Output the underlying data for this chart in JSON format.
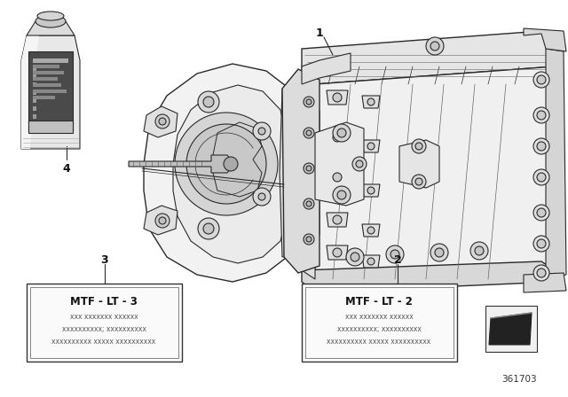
{
  "bg_color": "#ffffff",
  "diagram_id": "361703",
  "label_1": "1",
  "label_2": "2",
  "label_3": "3",
  "label_4": "4",
  "mtf_lt_2_title": "MTF - LT - 2",
  "mtf_lt_3_title": "MTF - LT - 3",
  "mtf_line1": "xxx xxxxxxx xxxxxx",
  "mtf_line2": "xxxxxxxxxx; xxxxxxxxxx",
  "mtf_line3": "xxxxxxxxxx xxxxx xxxxxxxxxx",
  "lc": "#2a2a2a",
  "lc_light": "#666666",
  "fill_white": "#ffffff",
  "fill_light": "#f0f0f0",
  "fill_mid": "#d8d8d8",
  "fill_dark": "#999999",
  "fill_darkest": "#555555"
}
